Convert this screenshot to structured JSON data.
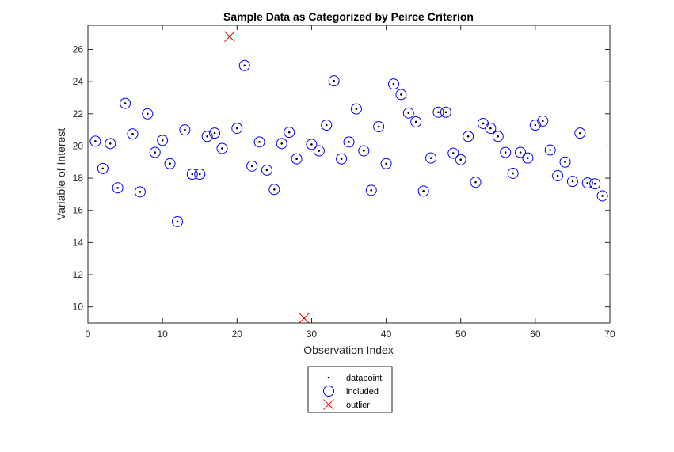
{
  "chart_data": {
    "type": "scatter",
    "title": "Sample Data as Categorized by Peirce Criterion",
    "xlabel": "Observation Index",
    "ylabel": "Variable of Interest",
    "xlim": [
      0,
      70
    ],
    "ylim": [
      9,
      27.5
    ],
    "xticks": [
      0,
      10,
      20,
      30,
      40,
      50,
      60,
      70
    ],
    "yticks": [
      10,
      12,
      14,
      16,
      18,
      20,
      22,
      24,
      26
    ],
    "grid": false,
    "legend_position": "bottom-outside",
    "series": [
      {
        "name": "datapoint",
        "marker": "dot",
        "color": "#000000",
        "x": [
          1,
          2,
          3,
          4,
          5,
          6,
          7,
          8,
          9,
          10,
          11,
          12,
          13,
          14,
          15,
          16,
          17,
          18,
          19,
          20,
          21,
          22,
          23,
          24,
          25,
          26,
          27,
          28,
          29,
          30,
          31,
          32,
          33,
          34,
          35,
          36,
          37,
          38,
          39,
          40,
          41,
          42,
          43,
          44,
          45,
          46,
          47,
          48,
          49,
          50,
          51,
          52,
          53,
          54,
          55,
          56,
          57,
          58,
          59,
          60,
          61,
          62,
          63,
          64,
          65,
          66,
          67,
          68,
          69
        ],
        "y": [
          20.3,
          18.6,
          20.15,
          17.4,
          22.65,
          20.75,
          17.15,
          22.0,
          19.6,
          20.35,
          18.9,
          15.3,
          21.0,
          18.25,
          18.25,
          20.6,
          20.8,
          19.85,
          26.8,
          21.1,
          25.0,
          18.75,
          20.25,
          18.5,
          17.3,
          20.15,
          20.85,
          19.2,
          9.3,
          20.1,
          19.7,
          21.3,
          24.05,
          19.2,
          20.25,
          22.3,
          19.7,
          17.25,
          21.2,
          18.9,
          23.85,
          23.2,
          22.05,
          21.5,
          17.2,
          19.25,
          22.1,
          22.1,
          19.55,
          19.15,
          20.6,
          17.75,
          21.4,
          21.1,
          20.6,
          19.6,
          18.3,
          19.6,
          19.25,
          21.3,
          21.55,
          19.75,
          18.15,
          19.0,
          17.8,
          20.8,
          17.7,
          17.65,
          16.9
        ]
      },
      {
        "name": "included",
        "marker": "circle",
        "color": "#0000ff",
        "x": [
          1,
          2,
          3,
          4,
          5,
          6,
          7,
          8,
          9,
          10,
          11,
          12,
          13,
          14,
          15,
          16,
          17,
          18,
          20,
          21,
          22,
          23,
          24,
          25,
          26,
          27,
          28,
          30,
          31,
          32,
          33,
          34,
          35,
          36,
          37,
          38,
          39,
          40,
          41,
          42,
          43,
          44,
          45,
          46,
          47,
          48,
          49,
          50,
          51,
          52,
          53,
          54,
          55,
          56,
          57,
          58,
          59,
          60,
          61,
          62,
          63,
          64,
          65,
          66,
          67,
          68,
          69
        ],
        "y": [
          20.3,
          18.6,
          20.15,
          17.4,
          22.65,
          20.75,
          17.15,
          22.0,
          19.6,
          20.35,
          18.9,
          15.3,
          21.0,
          18.25,
          18.25,
          20.6,
          20.8,
          19.85,
          21.1,
          25.0,
          18.75,
          20.25,
          18.5,
          17.3,
          20.15,
          20.85,
          19.2,
          20.1,
          19.7,
          21.3,
          24.05,
          19.2,
          20.25,
          22.3,
          19.7,
          17.25,
          21.2,
          18.9,
          23.85,
          23.2,
          22.05,
          21.5,
          17.2,
          19.25,
          22.1,
          22.1,
          19.55,
          19.15,
          20.6,
          17.75,
          21.4,
          21.1,
          20.6,
          19.6,
          18.3,
          19.6,
          19.25,
          21.3,
          21.55,
          19.75,
          18.15,
          19.0,
          17.8,
          20.8,
          17.7,
          17.65,
          16.9
        ]
      },
      {
        "name": "outlier",
        "marker": "x",
        "color": "#ff0000",
        "x": [
          19,
          29
        ],
        "y": [
          26.8,
          9.3
        ]
      }
    ]
  }
}
